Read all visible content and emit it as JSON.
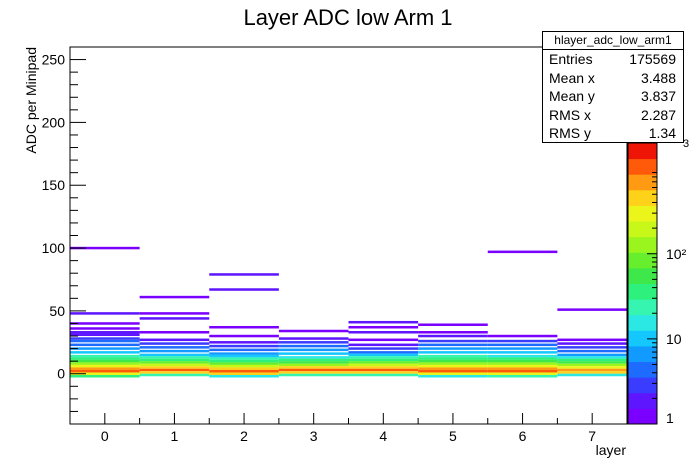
{
  "chart_data": {
    "type": "heatmap",
    "title": "Layer ADC low Arm 1",
    "xlabel": "layer",
    "ylabel": "ADC per Minipad",
    "xlim": [
      -0.5,
      7.5
    ],
    "ylim": [
      -40,
      260
    ],
    "x_ticks": [
      "0",
      "1",
      "2",
      "3",
      "4",
      "5",
      "6",
      "7"
    ],
    "y_ticks": [
      "0",
      "50",
      "100",
      "150",
      "200",
      "250"
    ],
    "color_scale": {
      "log": true,
      "min": 1,
      "max": 2000,
      "tick_labels": [
        "1",
        "10",
        "10²"
      ],
      "tick_values": [
        1,
        10,
        100
      ],
      "exponent_label": "3"
    },
    "palette": [
      "#7a00ff",
      "#5e16ff",
      "#3a3cff",
      "#1e6bff",
      "#119aff",
      "#14c8ff",
      "#2be8e4",
      "#35f5b0",
      "#2ef07c",
      "#3ee84a",
      "#67ee2c",
      "#9af51e",
      "#c8f71a",
      "#ecf51a",
      "#ffd21a",
      "#ff9a12",
      "#ff5a0a",
      "#ee1406"
    ],
    "cells": [
      {
        "layer": 0,
        "y": [
          [
            100,
            1
          ],
          [
            48,
            2
          ],
          [
            40,
            1
          ],
          [
            36,
            1
          ],
          [
            33,
            2
          ],
          [
            31,
            2
          ],
          [
            28,
            3
          ],
          [
            26,
            4
          ],
          [
            23,
            5
          ],
          [
            20,
            7
          ],
          [
            17,
            12
          ],
          [
            14,
            20
          ],
          [
            12,
            30
          ],
          [
            10,
            60
          ],
          [
            8,
            150
          ],
          [
            6,
            300
          ],
          [
            4,
            700
          ],
          [
            2,
            1000
          ],
          [
            0,
            300
          ],
          [
            -2,
            30
          ]
        ]
      },
      {
        "layer": 1,
        "y": [
          [
            61,
            1
          ],
          [
            48,
            1
          ],
          [
            44,
            2
          ],
          [
            33,
            1
          ],
          [
            27,
            2
          ],
          [
            24,
            3
          ],
          [
            21,
            4
          ],
          [
            18,
            6
          ],
          [
            15,
            10
          ],
          [
            13,
            20
          ],
          [
            11,
            40
          ],
          [
            9,
            80
          ],
          [
            7,
            200
          ],
          [
            5,
            400
          ],
          [
            3,
            900
          ],
          [
            1,
            400
          ],
          [
            -1,
            20
          ]
        ]
      },
      {
        "layer": 2,
        "y": [
          [
            79,
            2
          ],
          [
            67,
            2
          ],
          [
            37,
            1
          ],
          [
            30,
            1
          ],
          [
            25,
            2
          ],
          [
            22,
            3
          ],
          [
            19,
            4
          ],
          [
            16,
            6
          ],
          [
            14,
            10
          ],
          [
            12,
            20
          ],
          [
            10,
            40
          ],
          [
            8,
            90
          ],
          [
            6,
            200
          ],
          [
            4,
            500
          ],
          [
            2,
            1000
          ],
          [
            0,
            500
          ],
          [
            -2,
            15
          ]
        ]
      },
      {
        "layer": 3,
        "y": [
          [
            34,
            1
          ],
          [
            28,
            2
          ],
          [
            25,
            3
          ],
          [
            22,
            4
          ],
          [
            19,
            6
          ],
          [
            16,
            9
          ],
          [
            13,
            18
          ],
          [
            11,
            30
          ],
          [
            9,
            60
          ],
          [
            7,
            150
          ],
          [
            5,
            400
          ],
          [
            3,
            900
          ],
          [
            1,
            500
          ],
          [
            -1,
            20
          ]
        ]
      },
      {
        "layer": 4,
        "y": [
          [
            41,
            2
          ],
          [
            37,
            1
          ],
          [
            33,
            2
          ],
          [
            27,
            1
          ],
          [
            23,
            2
          ],
          [
            20,
            3
          ],
          [
            17,
            5
          ],
          [
            15,
            10
          ],
          [
            13,
            20
          ],
          [
            11,
            40
          ],
          [
            9,
            80
          ],
          [
            7,
            200
          ],
          [
            5,
            500
          ],
          [
            3,
            1000
          ],
          [
            1,
            500
          ],
          [
            -1,
            20
          ]
        ]
      },
      {
        "layer": 5,
        "y": [
          [
            39,
            1
          ],
          [
            33,
            1
          ],
          [
            30,
            2
          ],
          [
            26,
            3
          ],
          [
            23,
            4
          ],
          [
            20,
            6
          ],
          [
            17,
            10
          ],
          [
            14,
            20
          ],
          [
            12,
            35
          ],
          [
            10,
            60
          ],
          [
            8,
            150
          ],
          [
            6,
            300
          ],
          [
            4,
            800
          ],
          [
            2,
            900
          ],
          [
            0,
            300
          ],
          [
            -2,
            15
          ]
        ]
      },
      {
        "layer": 6,
        "y": [
          [
            97,
            1
          ],
          [
            30,
            1
          ],
          [
            26,
            3
          ],
          [
            23,
            4
          ],
          [
            20,
            6
          ],
          [
            17,
            10
          ],
          [
            14,
            18
          ],
          [
            12,
            30
          ],
          [
            10,
            60
          ],
          [
            8,
            130
          ],
          [
            6,
            300
          ],
          [
            4,
            700
          ],
          [
            2,
            1000
          ],
          [
            0,
            300
          ],
          [
            -2,
            20
          ]
        ]
      },
      {
        "layer": 7,
        "y": [
          [
            51,
            1
          ],
          [
            27,
            1
          ],
          [
            24,
            2
          ],
          [
            21,
            3
          ],
          [
            18,
            5
          ],
          [
            15,
            8
          ],
          [
            13,
            15
          ],
          [
            11,
            30
          ],
          [
            9,
            60
          ],
          [
            7,
            130
          ],
          [
            5,
            350
          ],
          [
            3,
            800
          ],
          [
            1,
            400
          ],
          [
            -1,
            15
          ]
        ]
      }
    ]
  },
  "stats": {
    "name": "hlayer_adc_low_arm1",
    "rows": [
      {
        "label": "Entries",
        "value": "175569"
      },
      {
        "label": "Mean x",
        "value": "3.488"
      },
      {
        "label": "Mean y",
        "value": "3.837"
      },
      {
        "label": "RMS x",
        "value": "2.287"
      },
      {
        "label": "RMS y",
        "value": "1.34"
      }
    ]
  }
}
